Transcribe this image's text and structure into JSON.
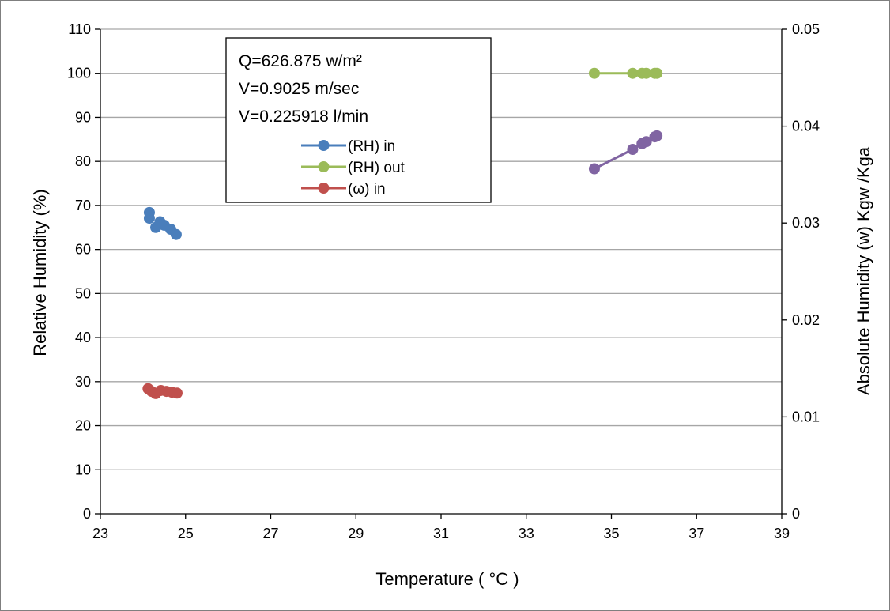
{
  "chart_data": {
    "type": "scatter",
    "xlabel": "Temperature ( °C )",
    "ylabel": "Relative Humidity (%)",
    "y2label": "Absolute Humidity (w) Kgw /Kga",
    "xlim": [
      23,
      39
    ],
    "ylim": [
      0,
      110
    ],
    "y2lim": [
      0,
      0.05
    ],
    "xticks": [
      "23",
      "25",
      "27",
      "29",
      "31",
      "33",
      "35",
      "37",
      "39"
    ],
    "yticks": [
      "0",
      "10",
      "20",
      "30",
      "40",
      "50",
      "60",
      "70",
      "80",
      "90",
      "100",
      "110"
    ],
    "y2ticks": [
      "0",
      "0.01",
      "0.02",
      "0.03",
      "0.04",
      "0.05"
    ],
    "grid": true,
    "annotations": [
      "Q=626.875 w/m²",
      "V=0.9025 m/sec",
      "V=0.225918 l/min"
    ],
    "legend_position": "top-center",
    "series": [
      {
        "name": "(RH) in",
        "color": "#4a7ebb",
        "axis": "left",
        "line": false,
        "points": [
          [
            24.15,
            68.4
          ],
          [
            24.15,
            67.1
          ],
          [
            24.3,
            65.0
          ],
          [
            24.4,
            66.3
          ],
          [
            24.5,
            65.5
          ],
          [
            24.65,
            64.6
          ],
          [
            24.78,
            63.4
          ]
        ]
      },
      {
        "name": "(RH) out",
        "color": "#9bbb59",
        "axis": "left",
        "line": true,
        "points": [
          [
            34.6,
            100.0
          ],
          [
            35.5,
            100.0
          ],
          [
            35.72,
            100.0
          ],
          [
            35.82,
            100.0
          ],
          [
            36.02,
            100.0
          ],
          [
            36.07,
            100.0
          ]
        ]
      },
      {
        "name": "(ω) in",
        "color": "#c0504d",
        "axis": "left",
        "line": false,
        "points": [
          [
            24.12,
            28.4
          ],
          [
            24.2,
            27.8
          ],
          [
            24.3,
            27.3
          ],
          [
            24.42,
            28.0
          ],
          [
            24.55,
            27.8
          ],
          [
            24.68,
            27.6
          ],
          [
            24.8,
            27.4
          ]
        ]
      },
      {
        "name": "",
        "color": "#8064a2",
        "axis": "right",
        "line": true,
        "points": [
          [
            34.6,
            0.0356
          ],
          [
            35.5,
            0.0376
          ],
          [
            35.72,
            0.0382
          ],
          [
            35.82,
            0.0384
          ],
          [
            36.02,
            0.0389
          ],
          [
            36.07,
            0.039
          ]
        ]
      }
    ]
  }
}
